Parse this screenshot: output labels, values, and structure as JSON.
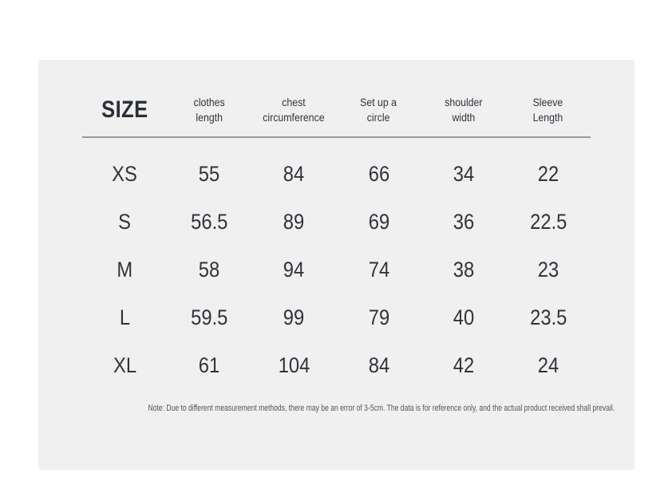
{
  "chart_data": {
    "type": "table",
    "title": "SIZE",
    "columns": [
      "clothes\nlength",
      "chest\ncircumference",
      "Set up a\ncircle",
      "shoulder\nwidth",
      "Sleeve\nLength"
    ],
    "rows": [
      {
        "size": "XS",
        "values": [
          "55",
          "84",
          "66",
          "34",
          "22"
        ]
      },
      {
        "size": "S",
        "values": [
          "56.5",
          "89",
          "69",
          "36",
          "22.5"
        ]
      },
      {
        "size": "M",
        "values": [
          "58",
          "94",
          "74",
          "38",
          "23"
        ]
      },
      {
        "size": "L",
        "values": [
          "59.5",
          "99",
          "79",
          "40",
          "23.5"
        ]
      },
      {
        "size": "XL",
        "values": [
          "61",
          "104",
          "84",
          "42",
          "24"
        ]
      }
    ],
    "layout": "6-column size chart, header row separated by horizontal rule, footnote below"
  },
  "note": "Note: Due to different measurement methods, there may be an error of 3-5cm. The data is for reference only, and the actual product received shall prevail.",
  "colors": {
    "card_background": "#f0f0f1",
    "text": "#2f343b",
    "note_text": "#50545a",
    "divider": "#9b9b9b"
  }
}
